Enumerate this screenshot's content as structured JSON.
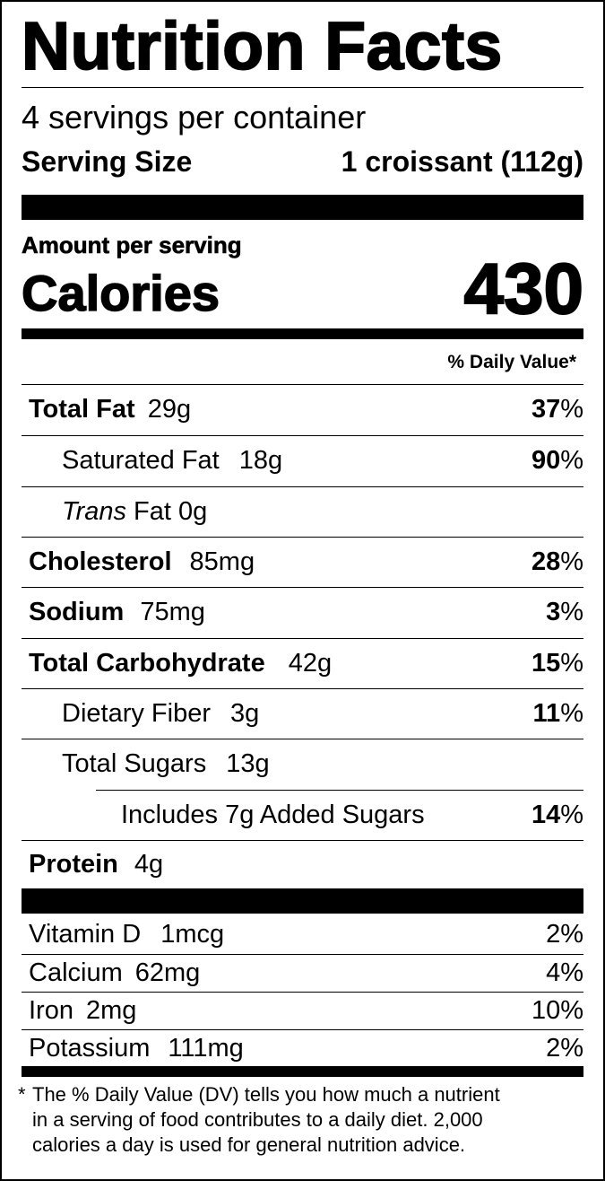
{
  "title": "Nutrition Facts",
  "servings": "4 servings per container",
  "serving_size": {
    "label": "Serving Size",
    "value": "1 croissant (112g)"
  },
  "amount_per_serving": "Amount per serving",
  "calories": {
    "label": "Calories",
    "value": "430"
  },
  "dv_header": "% Daily Value*",
  "nutrients": [
    {
      "name": "Total Fat",
      "amount": "29g",
      "dv": "37",
      "dv_unit": "%"
    },
    {
      "name": "Saturated Fat",
      "amount": "18g",
      "dv": "90",
      "dv_unit": "%"
    },
    {
      "name_italic": "Trans",
      "name": "Fat",
      "amount": "0g"
    },
    {
      "name": "Cholesterol",
      "amount": "85mg",
      "dv": "28",
      "dv_unit": "%"
    },
    {
      "name": "Sodium",
      "amount": "75mg",
      "dv": "3",
      "dv_unit": "%"
    },
    {
      "name": "Total Carbohydrate",
      "amount": "42g",
      "dv": "15",
      "dv_unit": "%"
    },
    {
      "name": "Dietary Fiber",
      "amount": "3g",
      "dv": "11",
      "dv_unit": "%"
    },
    {
      "name": "Total Sugars",
      "amount": "13g"
    },
    {
      "name": "Includes 7g Added Sugars",
      "dv": "14",
      "dv_unit": "%"
    },
    {
      "name": "Protein",
      "amount": "4g"
    }
  ],
  "vitamins": [
    {
      "name": "Vitamin D",
      "amount": "1mcg",
      "dv": "2%"
    },
    {
      "name": "Calcium",
      "amount": "62mg",
      "dv": "4%"
    },
    {
      "name": "Iron",
      "amount": "2mg",
      "dv": "10%"
    },
    {
      "name": "Potassium",
      "amount": "111mg",
      "dv": "2%"
    }
  ],
  "footnote": {
    "marker": "*",
    "lines": [
      "The % Daily Value (DV) tells you how much a nutrient",
      "in a serving of food contributes to a daily diet. 2,000",
      "calories a day is used for general nutrition advice."
    ]
  }
}
